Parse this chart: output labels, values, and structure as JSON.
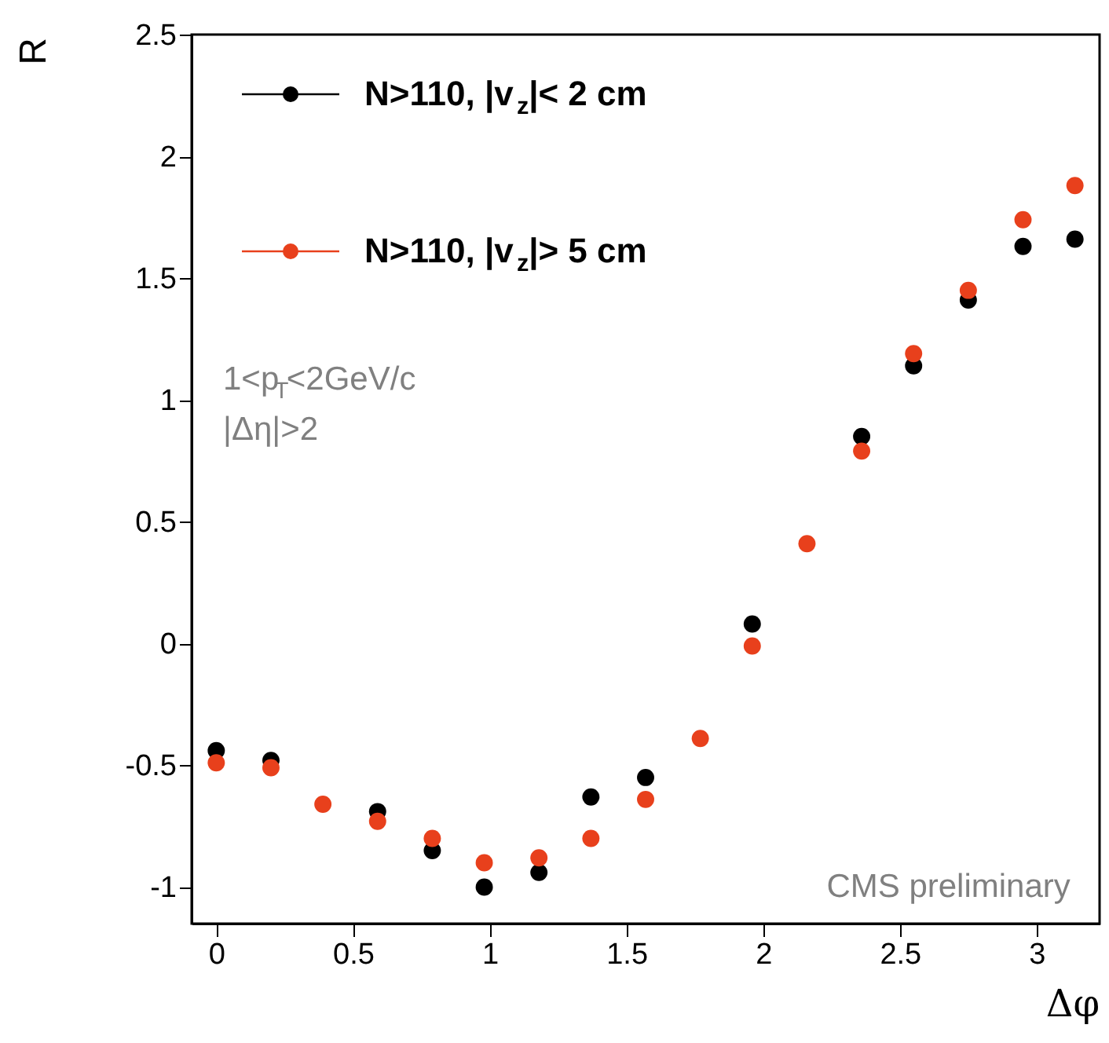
{
  "chart_data": {
    "type": "scatter",
    "xlabel": "Δφ",
    "ylabel": "R",
    "x": [
      0,
      0.2,
      0.39,
      0.59,
      0.79,
      0.98,
      1.18,
      1.37,
      1.57,
      1.77,
      1.96,
      2.16,
      2.36,
      2.55,
      2.75,
      2.95,
      3.14
    ],
    "series": [
      {
        "name": "N>110, |v$_{z}$|< 2 cm",
        "color": "#000000",
        "values": [
          -0.44,
          -0.48,
          null,
          -0.69,
          -0.85,
          -1.0,
          -0.94,
          -0.63,
          -0.55,
          null,
          0.08,
          null,
          0.85,
          1.14,
          1.41,
          1.63,
          1.66
        ]
      },
      {
        "name": "N>110, |v$_{z}$|> 5 cm",
        "color": "#e8401c",
        "values": [
          -0.49,
          -0.51,
          -0.66,
          -0.73,
          -0.8,
          -0.9,
          -0.88,
          -0.8,
          -0.64,
          -0.39,
          -0.01,
          0.41,
          0.79,
          1.19,
          1.45,
          1.74,
          1.88
        ]
      }
    ],
    "xlim": [
      -0.09,
      3.23
    ],
    "ylim": [
      -1.15,
      2.5
    ],
    "xticks": [
      0,
      0.5,
      1,
      1.5,
      2,
      2.5,
      3
    ],
    "yticks": [
      -1,
      -0.5,
      0,
      0.5,
      1,
      1.5,
      2,
      2.5
    ],
    "annotations": [
      "1<p$_{T}$<2GeV/c",
      "|Δη|>2",
      "CMS preliminary"
    ],
    "legend": "top left",
    "marker": "circle",
    "grid": false
  }
}
